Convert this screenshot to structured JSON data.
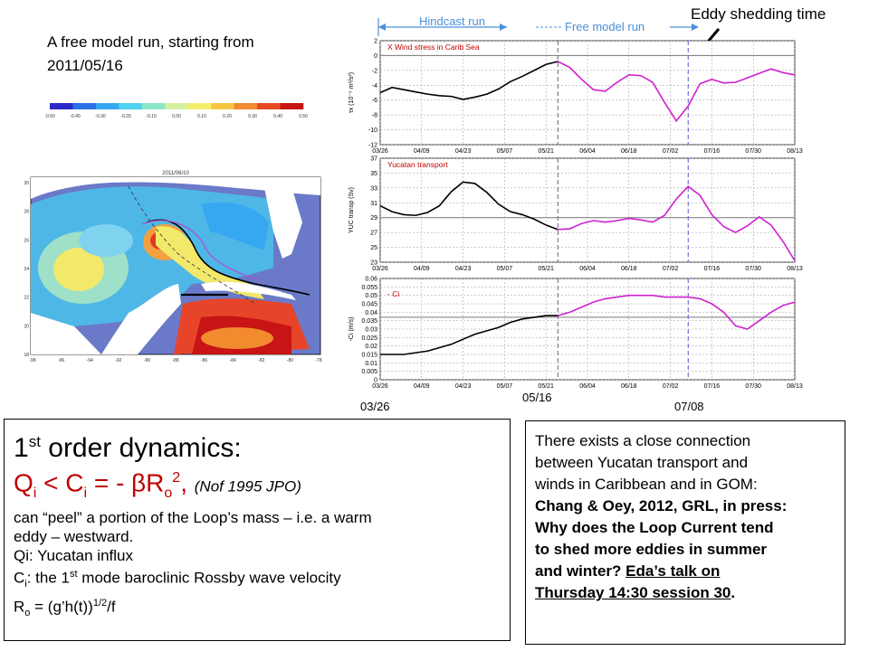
{
  "header": {
    "hindcast_label": "Hindcast run",
    "free_label": "Free model run",
    "eddy_label": "Eddy shedding time"
  },
  "left_caption": {
    "line1": "A free model run, starting from",
    "line2": "2011/05/16"
  },
  "colorbar": {
    "ticks": [
      "-0.50",
      "-0.40",
      "-0.30",
      "-0.20",
      "-0.10",
      "0.00",
      "0.10",
      "0.20",
      "0.30",
      "0.40",
      "0.50"
    ],
    "colors": [
      "#2b2bc8",
      "#2f6fe6",
      "#36a8f2",
      "#4fd3f0",
      "#8ee6c8",
      "#d5f0a0",
      "#f2ef6c",
      "#f8c444",
      "#f28a2e",
      "#e44a1e",
      "#c81414"
    ]
  },
  "map": {
    "date": "2011/06/10",
    "lat_ticks": [
      "30",
      "28",
      "26",
      "24",
      "22",
      "20",
      "18"
    ],
    "lon_ticks": [
      "-98",
      "-96",
      "-94",
      "-92",
      "-90",
      "-88",
      "-86",
      "-84",
      "-82",
      "-80",
      "-78"
    ]
  },
  "bottom_dates": {
    "start": "03/26",
    "mid": "05/16",
    "end": "07/08"
  },
  "chart_data": [
    {
      "type": "line",
      "annotation": "X Wind stress in Carib Sea",
      "ylabel": "τx (10⁻⁵ m²/s²)",
      "ylim": [
        -12,
        2
      ],
      "yticks": [
        -12,
        -10,
        -8,
        -6,
        -4,
        -2,
        0,
        2
      ],
      "x_ticks": [
        "03/26",
        "04/09",
        "04/23",
        "05/07",
        "05/21",
        "06/04",
        "06/18",
        "07/02",
        "07/16",
        "07/30",
        "08/13"
      ],
      "reference_line": 0,
      "x": [
        0,
        4,
        8,
        12,
        16,
        20,
        24,
        28,
        32,
        36,
        40,
        44,
        48,
        52,
        56,
        60,
        64,
        68,
        72,
        76,
        80,
        84,
        88,
        92,
        96,
        100,
        104,
        108,
        112,
        116,
        120,
        124,
        128,
        132,
        136,
        140
      ],
      "hindcast_run": [
        -5.0,
        -4.3,
        -4.6,
        -4.9,
        -5.2,
        -5.4,
        -5.5,
        -5.9,
        -5.6,
        -5.2,
        -4.5,
        -3.5,
        -2.8,
        -2.0,
        -1.2,
        -0.8
      ],
      "free_run": [
        -0.8,
        -1.6,
        -3.2,
        -4.6,
        -4.8,
        -3.6,
        -2.6,
        -2.7,
        -3.6,
        -6.3,
        -8.8,
        -6.8,
        -3.8,
        -3.2,
        -3.7,
        -3.6,
        -3.0,
        -2.4,
        -1.8,
        -2.3,
        -2.6
      ]
    },
    {
      "type": "line",
      "annotation": "Yucatan transport",
      "ylabel": "YUC transp (Sv)",
      "ylim": [
        23,
        37
      ],
      "yticks": [
        23,
        25,
        27,
        29,
        31,
        33,
        35,
        37
      ],
      "x_ticks": [
        "03/26",
        "04/09",
        "04/23",
        "05/07",
        "05/21",
        "06/04",
        "06/18",
        "07/02",
        "07/16",
        "07/30",
        "08/13"
      ],
      "reference_line": 29,
      "x": [
        0,
        4,
        8,
        12,
        16,
        20,
        24,
        28,
        32,
        36,
        40,
        44,
        48,
        52,
        56,
        60,
        64,
        68,
        72,
        76,
        80,
        84,
        88,
        92,
        96,
        100,
        104,
        108,
        112,
        116,
        120,
        124,
        128,
        132,
        136,
        140
      ],
      "hindcast_run": [
        30.6,
        29.8,
        29.4,
        29.3,
        29.7,
        30.6,
        32.5,
        33.8,
        33.6,
        32.4,
        30.8,
        29.8,
        29.4,
        28.8,
        28.0,
        27.4
      ],
      "free_run": [
        27.4,
        27.5,
        28.2,
        28.6,
        28.4,
        28.6,
        28.9,
        28.7,
        28.4,
        29.3,
        31.5,
        33.2,
        32.0,
        29.4,
        27.8,
        27.0,
        27.9,
        29.1,
        28.0,
        25.8,
        23.2
      ]
    },
    {
      "type": "line",
      "annotation": "- Ci",
      "ylabel": "-Ci (m/s)",
      "ylim": [
        0,
        0.06
      ],
      "yticks": [
        0,
        0.005,
        0.01,
        0.015,
        0.02,
        0.025,
        0.03,
        0.035,
        0.04,
        0.045,
        0.05,
        0.055,
        0.06
      ],
      "x_ticks": [
        "03/26",
        "04/09",
        "04/23",
        "05/07",
        "05/21",
        "06/04",
        "06/18",
        "07/02",
        "07/16",
        "07/30",
        "08/13"
      ],
      "reference_line": 0.037,
      "x": [
        0,
        4,
        8,
        12,
        16,
        20,
        24,
        28,
        32,
        36,
        40,
        44,
        48,
        52,
        56,
        60,
        64,
        68,
        72,
        76,
        80,
        84,
        88,
        92,
        96,
        100,
        104,
        108,
        112,
        116,
        120,
        124,
        128,
        132,
        136,
        140
      ],
      "hindcast_run": [
        0.015,
        0.015,
        0.015,
        0.016,
        0.017,
        0.019,
        0.021,
        0.024,
        0.027,
        0.029,
        0.031,
        0.034,
        0.036,
        0.037,
        0.038,
        0.038
      ],
      "free_run": [
        0.038,
        0.04,
        0.043,
        0.046,
        0.048,
        0.049,
        0.05,
        0.05,
        0.05,
        0.049,
        0.049,
        0.049,
        0.048,
        0.045,
        0.04,
        0.032,
        0.03,
        0.035,
        0.04,
        0.044,
        0.046
      ]
    }
  ],
  "dynamics_box": {
    "title_pre": "1",
    "title_sup": "st",
    "title_post": " order dynamics:",
    "q_q": "Q",
    "q_qsub": "i",
    "q_mid": " < C",
    "q_csub": "i",
    "q_eq": " = - βR",
    "q_rsub": "o",
    "q_sq": "2",
    "q_comma": ", ",
    "q_cite": "(Nof 1995 JPO)",
    "line1": "can “peel” a portion of the Loop’s mass – i.e. a warm",
    "line2": "eddy – westward.",
    "line3": "Qi: Yucatan influx",
    "line4_c": "C",
    "line4_sub": "i",
    "line4_a": ": the 1",
    "line4_sup": "st",
    "line4_b": " mode baroclinic Rossby wave velocity",
    "line5_a": "R",
    "line5_sub": "o",
    "line5_b": " = (g’h(t))",
    "line5_sup": "1/2",
    "line5_c": "/f"
  },
  "right_box": {
    "line1": "There exists a close connection",
    "line2": "between Yucatan transport and",
    "line3": "winds in Caribbean and in GOM:",
    "line4": "Chang & Oey, 2012, GRL, in press:",
    "line5": "Why does the Loop Current tend",
    "line6": "to shed more eddies in summer",
    "line7_a": "and winter?  ",
    "line7_b": "Eda’s talk on",
    "line8_a": "Thursday 14:30 session 30",
    "line8_b": "."
  }
}
